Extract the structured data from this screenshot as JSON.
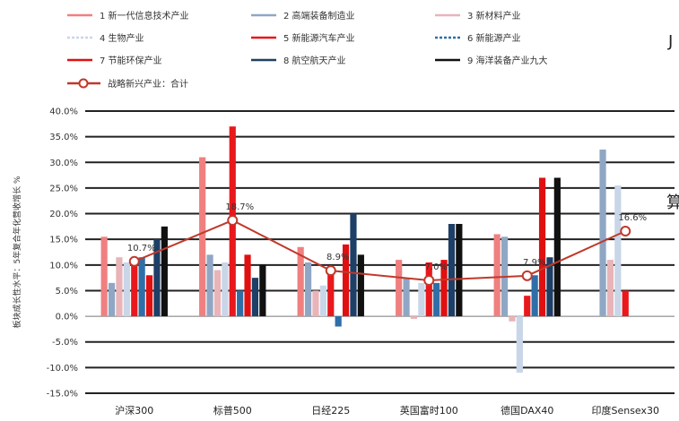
{
  "edge_fragments": [
    "J",
    "算"
  ],
  "chart_data": {
    "type": "bar",
    "ylabel": "板块成长性水平：5年复合年化营收增长 %",
    "ylim": [
      -15,
      40
    ],
    "yticks": [
      -15,
      -10,
      -5,
      0,
      5,
      10,
      15,
      20,
      25,
      30,
      35,
      40
    ],
    "ytick_labels": [
      "-15.0%",
      "-10.0%",
      "-5.0%",
      "0.0%",
      "5.0%",
      "10.0%",
      "15.0%",
      "20.0%",
      "25.0%",
      "30.0%",
      "35.0%",
      "40.0%"
    ],
    "grid": true,
    "legend_position": "top",
    "categories": [
      "沪深300",
      "标普500",
      "日经225",
      "英国富时100",
      "德国DAX40",
      "印度Sensex30"
    ],
    "series": [
      {
        "name": "1 新一代信息技术产业",
        "color": "#f08080",
        "values": [
          15.5,
          31.0,
          13.5,
          11.0,
          16.0,
          0.0
        ]
      },
      {
        "name": "2 高端装备制造业",
        "color": "#8fa7c4",
        "values": [
          6.5,
          12.0,
          10.5,
          7.5,
          15.5,
          32.5
        ]
      },
      {
        "name": "3 新材料产业",
        "color": "#e8b4b8",
        "values": [
          11.5,
          9.0,
          5.0,
          -0.5,
          -1.0,
          11.0
        ]
      },
      {
        "name": "4 生物产业",
        "color": "#c9d6e8",
        "values": [
          10.5,
          10.5,
          6.0,
          6.5,
          -11.0,
          25.5
        ]
      },
      {
        "name": "5 新能源汽车产业",
        "color": "#e8181c",
        "values": [
          11.0,
          37.0,
          9.0,
          10.5,
          4.0,
          5.0
        ]
      },
      {
        "name": "6 新能源产业",
        "color": "#2f6fa8",
        "values": [
          11.5,
          5.0,
          -2.0,
          6.5,
          8.0,
          0.0
        ]
      },
      {
        "name": "7 节能环保产业",
        "color": "#e01010",
        "values": [
          8.0,
          12.0,
          14.0,
          11.0,
          27.0,
          0.0
        ]
      },
      {
        "name": "8 航空航天产业",
        "color": "#1e3f66",
        "values": [
          15.0,
          7.5,
          20.0,
          18.0,
          11.5,
          0.0
        ]
      },
      {
        "name": "9 海洋装备产业九大",
        "color": "#111111",
        "values": [
          17.5,
          10.0,
          12.0,
          18.0,
          27.0,
          0.0
        ]
      }
    ],
    "total_series": {
      "name": "战略新兴产业：合计",
      "color": "#c0392b",
      "values": [
        10.7,
        18.7,
        8.9,
        7.0,
        7.9,
        16.6
      ],
      "labels": [
        "10.7%",
        "18.7%",
        "8.9%",
        "7.0%",
        "7.9%",
        "16.6%"
      ]
    }
  }
}
